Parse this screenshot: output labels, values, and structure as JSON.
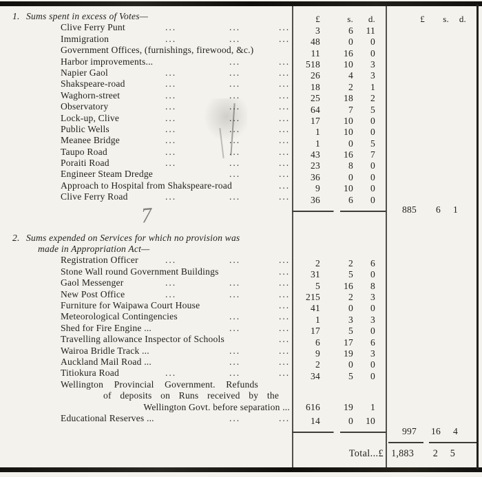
{
  "page": {
    "headers": {
      "col1": [
        "£",
        "s.",
        "d."
      ],
      "col2": [
        "£",
        "s.",
        "d."
      ]
    },
    "total_label": "Total...£",
    "artifact_seven": "7"
  },
  "sections": [
    {
      "number": "1.",
      "title_lines": [
        "Sums spent in excess of Votes—"
      ],
      "items": [
        {
          "label": "Clive Ferry Punt",
          "dots": "abc",
          "p": "3",
          "s": "6",
          "d": "11"
        },
        {
          "label": "Immigration",
          "dots": "abc",
          "p": "48",
          "s": "0",
          "d": "0"
        },
        {
          "label": "Government Offices, (furnishings, firewood, &c.)",
          "dots": "",
          "p": "11",
          "s": "16",
          "d": "0"
        },
        {
          "label": "Harbor improvements...",
          "dots": "bc",
          "p": "518",
          "s": "10",
          "d": "3"
        },
        {
          "label": "Napier Gaol",
          "dots": "abc",
          "p": "26",
          "s": "4",
          "d": "3"
        },
        {
          "label": "Shakspeare-road",
          "dots": "abc",
          "p": "18",
          "s": "2",
          "d": "1"
        },
        {
          "label": "Waghorn-street",
          "dots": "abc",
          "p": "25",
          "s": "18",
          "d": "2"
        },
        {
          "label": "Observatory",
          "dots": "abc",
          "p": "64",
          "s": "7",
          "d": "5"
        },
        {
          "label": "Lock-up, Clive",
          "dots": "abc",
          "p": "17",
          "s": "10",
          "d": "0"
        },
        {
          "label": "Public Wells",
          "dots": "abc",
          "p": "1",
          "s": "10",
          "d": "0"
        },
        {
          "label": "Meanee Bridge",
          "dots": "abc",
          "p": "1",
          "s": "0",
          "d": "5"
        },
        {
          "label": "Taupo Road",
          "dots": "abc",
          "p": "43",
          "s": "16",
          "d": "7"
        },
        {
          "label": "Poraiti Road",
          "dots": "abc",
          "p": "23",
          "s": "8",
          "d": "0"
        },
        {
          "label": "Engineer Steam Dredge",
          "dots": "bc",
          "p": "36",
          "s": "0",
          "d": "0"
        },
        {
          "label": "Approach to Hospital from Shakspeare-road",
          "dots": "c",
          "p": "9",
          "s": "10",
          "d": "0"
        },
        {
          "label": "Clive Ferry Road",
          "dots": "abc",
          "p": "36",
          "s": "6",
          "d": "0"
        }
      ],
      "subtotal": {
        "p": "885",
        "s": "6",
        "d": "1"
      }
    },
    {
      "number": "2.",
      "title_lines": [
        "Sums expended on Services for which no provision was",
        "made in Appropriation Act—"
      ],
      "items": [
        {
          "label": "Registration Officer",
          "dots": "abc",
          "p": "2",
          "s": "2",
          "d": "6"
        },
        {
          "label": "Stone Wall round Government Buildings",
          "dots": "c",
          "p": "31",
          "s": "5",
          "d": "0"
        },
        {
          "label": "Gaol Messenger",
          "dots": "abc",
          "p": "5",
          "s": "16",
          "d": "8"
        },
        {
          "label": "New Post Office",
          "dots": "abc",
          "p": "215",
          "s": "2",
          "d": "3"
        },
        {
          "label": "Furniture for Waipawa Court House",
          "dots": "c",
          "p": "41",
          "s": "0",
          "d": "0"
        },
        {
          "label": "Meteorological Contingencies",
          "dots": "bc",
          "p": "1",
          "s": "3",
          "d": "3"
        },
        {
          "label": "Shed for Fire Engine ...",
          "dots": "bc",
          "p": "17",
          "s": "5",
          "d": "0"
        },
        {
          "label": "Travelling allowance Inspector of Schools",
          "dots": "c",
          "p": "6",
          "s": "17",
          "d": "6"
        },
        {
          "label": "Wairoa Bridle Track ...",
          "dots": "bc",
          "p": "9",
          "s": "19",
          "d": "3"
        },
        {
          "label": "Auckland Mail Road ...",
          "dots": "bc",
          "p": "2",
          "s": "0",
          "d": "0"
        },
        {
          "label": "Titiokura Road",
          "dots": "abc",
          "p": "34",
          "s": "5",
          "d": "0"
        },
        {
          "lines": [
            "Wellington Provincial Government. Refunds",
            "of deposits on Runs received by the",
            "Wellington Govt. before separation ..."
          ],
          "p": "616",
          "s": "19",
          "d": "1"
        },
        {
          "label": "Educational Reserves ...",
          "dots": "bc",
          "p": "14",
          "s": "0",
          "d": "10"
        }
      ],
      "subtotal": {
        "p": "997",
        "s": "16",
        "d": "4"
      }
    }
  ],
  "total": {
    "p": "1,883",
    "s": "2",
    "d": "5"
  }
}
